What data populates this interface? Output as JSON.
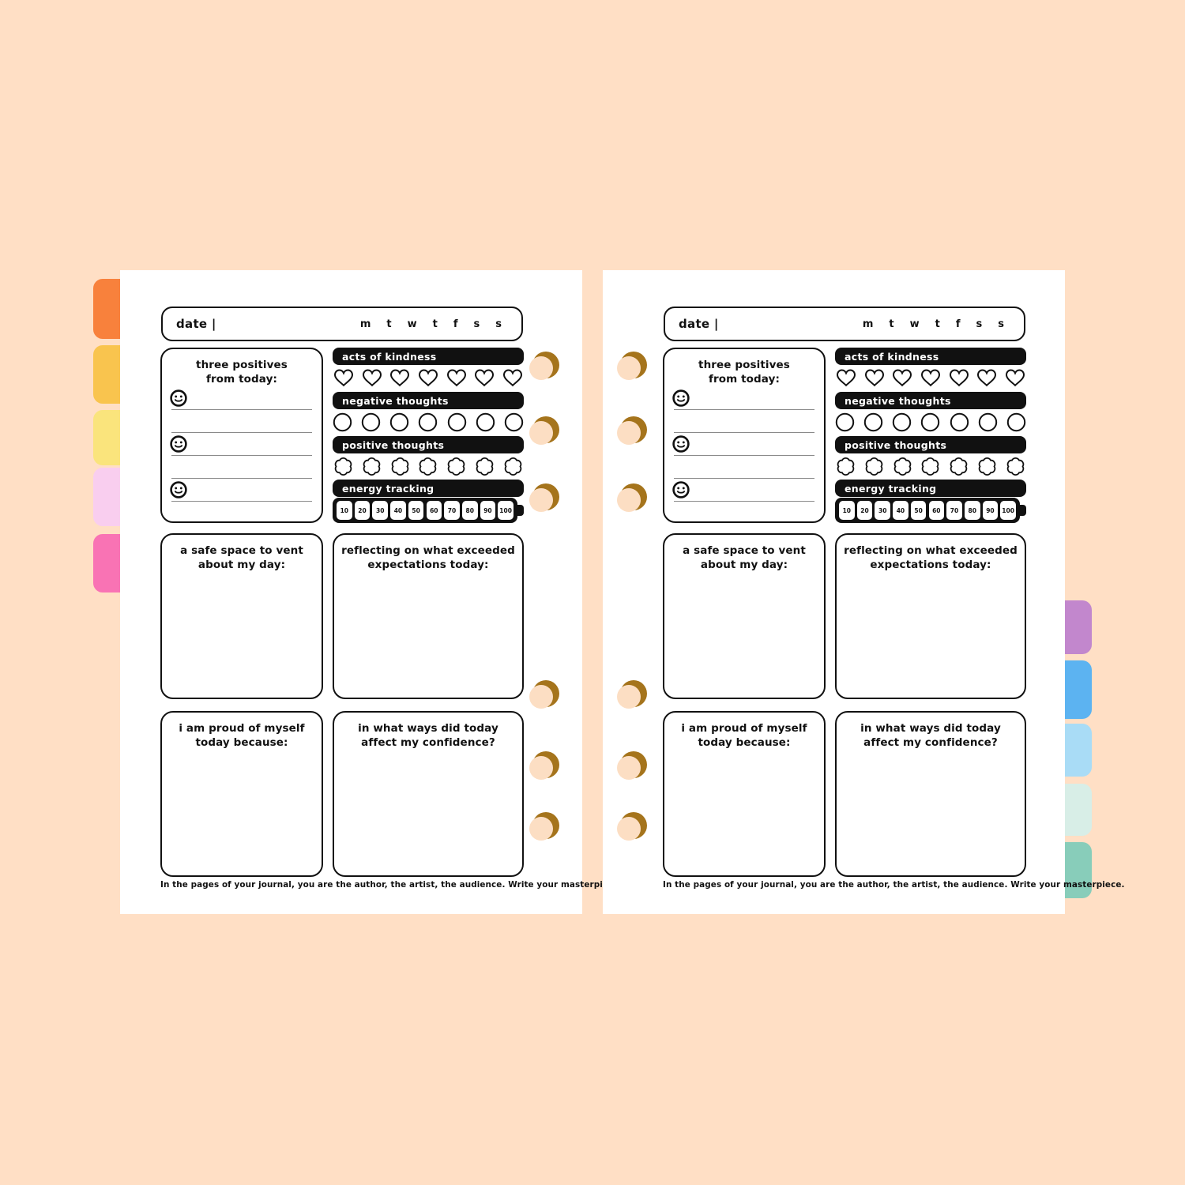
{
  "canvas": {
    "background": "#FFDFC5"
  },
  "binder": {
    "hole_outer_color": "#A5741C",
    "hole_inner_color": "#FCDEC3",
    "tabs_left": [
      {
        "color": "#F8813C"
      },
      {
        "color": "#F9C44E"
      },
      {
        "color": "#FAE47C"
      },
      {
        "color": "#F9CEEF"
      },
      {
        "color": "#F973B4"
      }
    ],
    "tabs_right": [
      {
        "color": "#C287CD"
      },
      {
        "color": "#5CB3F1"
      },
      {
        "color": "#A9DCF6"
      },
      {
        "color": "#D8EEE7"
      },
      {
        "color": "#88CDBA"
      }
    ]
  },
  "page": {
    "date_label": "date |",
    "week_days": [
      "m",
      "t",
      "w",
      "t",
      "f",
      "s",
      "s"
    ],
    "positives": {
      "title_line1": "three positives",
      "title_line2": "from today:",
      "entry_lines": 5
    },
    "trackers": [
      {
        "label": "acts of kindness",
        "shape": "heart",
        "count": 7
      },
      {
        "label": "negative thoughts",
        "shape": "circle",
        "count": 7
      },
      {
        "label": "positive thoughts",
        "shape": "flower",
        "count": 7
      },
      {
        "label": "energy tracking",
        "shape": "battery",
        "cells": [
          "10",
          "20",
          "30",
          "40",
          "50",
          "60",
          "70",
          "80",
          "90",
          "100"
        ]
      }
    ],
    "prompts": [
      {
        "title_line1": "a safe space to vent",
        "title_line2": "about my day:"
      },
      {
        "title_line1": "reflecting on what exceeded",
        "title_line2": "expectations today:"
      },
      {
        "title_line1": "i am proud of myself",
        "title_line2": "today because:"
      },
      {
        "title_line1": "in what ways did today",
        "title_line2": "affect my confidence?"
      }
    ],
    "footer": "In the pages of your journal, you are the author, the artist, the audience. Write your masterpiece."
  },
  "colors": {
    "ink": "#111111",
    "page": "#ffffff",
    "line": "#8a8a8a"
  }
}
